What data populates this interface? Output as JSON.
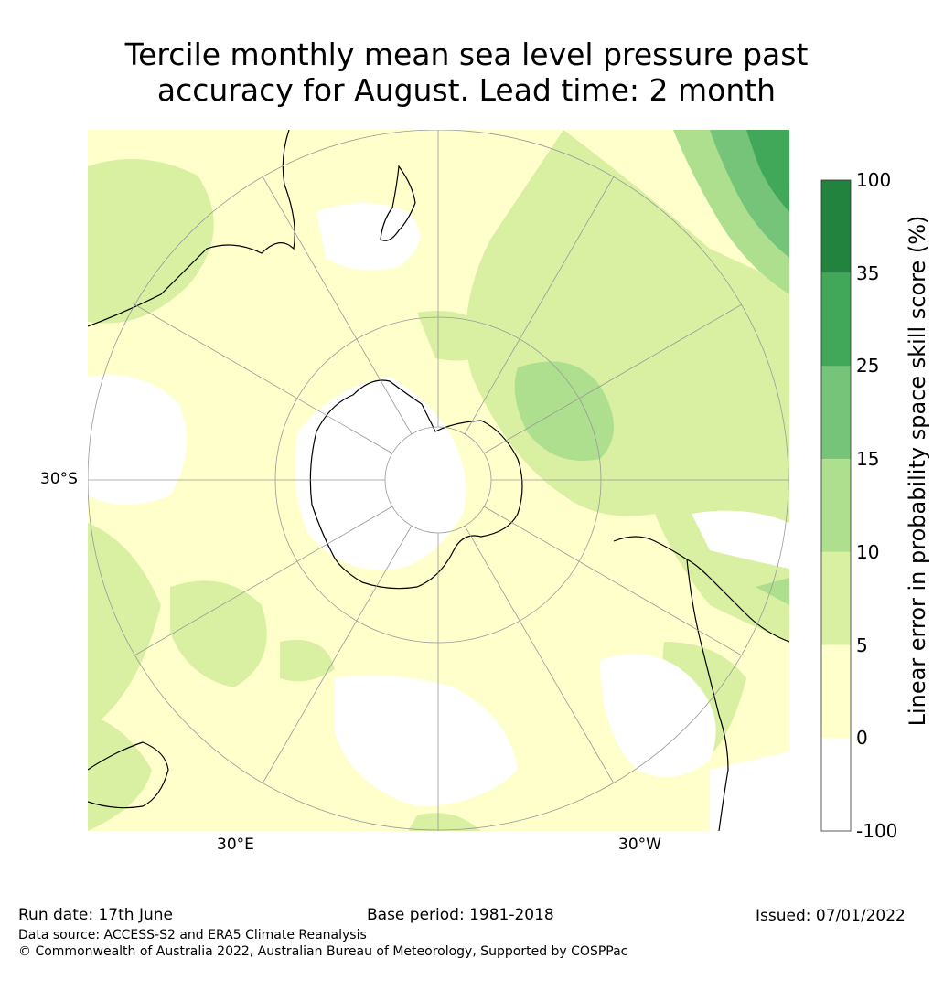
{
  "title": {
    "line1": "Tercile monthly mean sea level pressure past",
    "line2": "accuracy for August. Lead time: 2 month"
  },
  "map": {
    "projection": "south-polar-stereographic",
    "lat_labels": [
      "30°S"
    ],
    "lon_labels": [
      "30°E",
      "30°W"
    ],
    "land_outline_color": "#000000",
    "grid_color": "#999999"
  },
  "colorbar": {
    "label": "Linear error in probability space skill score (%)",
    "ticks": [
      "100",
      "35",
      "25",
      "15",
      "10",
      "5",
      "0",
      "-100"
    ],
    "bins": [
      {
        "range": "35 to 100",
        "color": "#21833d"
      },
      {
        "range": "25 to 35",
        "color": "#41a85a"
      },
      {
        "range": "15 to 25",
        "color": "#76c47a"
      },
      {
        "range": "10 to 15",
        "color": "#addf8e"
      },
      {
        "range": "5 to 10",
        "color": "#d9f0a3"
      },
      {
        "range": "0 to 5",
        "color": "#ffffcc"
      },
      {
        "range": "-100 to 0",
        "color": "#ffffff"
      }
    ]
  },
  "footer": {
    "run_date": "Run date: 17th June",
    "base_period": "Base period: 1981-2018",
    "issued": "Issued: 07/01/2022",
    "data_source": "Data source: ACCESS-S2 and ERA5 Climate Reanalysis",
    "copyright": "© Commonwealth of Australia 2022, Australian Bureau of Meteorology, Supported by COSPPac"
  }
}
